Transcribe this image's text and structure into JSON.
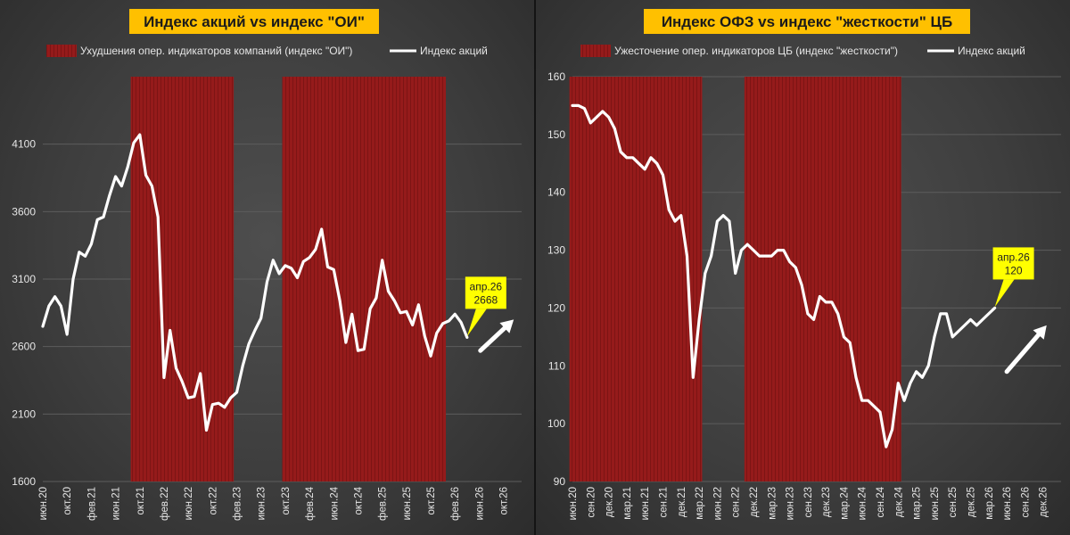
{
  "chart_data": [
    {
      "type": "line",
      "title": "Индекс акций vs индекс \"ОИ\"",
      "legend": {
        "band_label": "Ухудшения опер. индикаторов компаний (индекс \"ОИ\")",
        "line_label": "Индекс акций",
        "position": "top"
      },
      "ylim": [
        1600,
        4600
      ],
      "yticks": [
        1600,
        2100,
        2600,
        3100,
        3600,
        4100
      ],
      "xlim": [
        0,
        79
      ],
      "xticks": [
        {
          "i": 0,
          "label": "июн.20"
        },
        {
          "i": 4,
          "label": "окт.20"
        },
        {
          "i": 8,
          "label": "фев.21"
        },
        {
          "i": 12,
          "label": "июн.21"
        },
        {
          "i": 16,
          "label": "окт.21"
        },
        {
          "i": 20,
          "label": "фев.22"
        },
        {
          "i": 24,
          "label": "июн.22"
        },
        {
          "i": 28,
          "label": "окт.22"
        },
        {
          "i": 32,
          "label": "фев.23"
        },
        {
          "i": 36,
          "label": "июн.23"
        },
        {
          "i": 40,
          "label": "окт.23"
        },
        {
          "i": 44,
          "label": "фев.24"
        },
        {
          "i": 48,
          "label": "июн.24"
        },
        {
          "i": 52,
          "label": "окт.24"
        },
        {
          "i": 56,
          "label": "фев.25"
        },
        {
          "i": 60,
          "label": "июн.25"
        },
        {
          "i": 64,
          "label": "окт.25"
        },
        {
          "i": 68,
          "label": "фев.26"
        },
        {
          "i": 72,
          "label": "июн.26"
        },
        {
          "i": 76,
          "label": "окт.26"
        }
      ],
      "bands": [
        [
          14.5,
          31.5
        ],
        [
          39.5,
          66.5
        ]
      ],
      "series": [
        {
          "name": "Индекс акций",
          "color": "#ffffff",
          "values": [
            2750,
            2900,
            2970,
            2900,
            2690,
            3100,
            3300,
            3270,
            3360,
            3540,
            3560,
            3720,
            3860,
            3790,
            3930,
            4110,
            4170,
            3870,
            3790,
            3560,
            2370,
            2720,
            2440,
            2340,
            2220,
            2230,
            2400,
            1980,
            2170,
            2180,
            2150,
            2220,
            2260,
            2460,
            2620,
            2720,
            2810,
            3080,
            3240,
            3140,
            3200,
            3180,
            3110,
            3230,
            3260,
            3320,
            3470,
            3190,
            3170,
            2940,
            2630,
            2840,
            2570,
            2580,
            2880,
            2960,
            3240,
            3010,
            2940,
            2850,
            2860,
            2760,
            2910,
            2680,
            2530,
            2700,
            2770,
            2790,
            2840,
            2780,
            2668
          ]
        }
      ],
      "annotation": {
        "label": "апр.26",
        "value": "2668",
        "i": 70
      },
      "arrow": {
        "from": [
          72.2,
          2570
        ],
        "to": [
          77.7,
          2800
        ]
      },
      "colors": {
        "band": "#951b1b",
        "title_bg": "#ffc000",
        "title_fg": "#1b1b1b",
        "annotation_bg": "#ffff00"
      }
    },
    {
      "type": "line",
      "title": "Индекс ОФЗ vs индекс \"жесткости\" ЦБ",
      "legend": {
        "band_label": "Ужесточение опер. индикаторов ЦБ (индекс \"жесткости\")",
        "line_label": "Индекс акций",
        "position": "top"
      },
      "ylim": [
        90,
        160
      ],
      "yticks": [
        90,
        100,
        110,
        120,
        130,
        140,
        150,
        160
      ],
      "xlim": [
        0,
        81
      ],
      "xticks": [
        {
          "i": 0,
          "label": "июн.20"
        },
        {
          "i": 3,
          "label": "сен.20"
        },
        {
          "i": 6,
          "label": "дек.20"
        },
        {
          "i": 9,
          "label": "мар.21"
        },
        {
          "i": 12,
          "label": "июн.21"
        },
        {
          "i": 15,
          "label": "сен.21"
        },
        {
          "i": 18,
          "label": "дек.21"
        },
        {
          "i": 21,
          "label": "мар.22"
        },
        {
          "i": 24,
          "label": "июн.22"
        },
        {
          "i": 27,
          "label": "сен.22"
        },
        {
          "i": 30,
          "label": "дек.22"
        },
        {
          "i": 33,
          "label": "мар.23"
        },
        {
          "i": 36,
          "label": "июн.23"
        },
        {
          "i": 39,
          "label": "сен.23"
        },
        {
          "i": 42,
          "label": "дек.23"
        },
        {
          "i": 45,
          "label": "мар.24"
        },
        {
          "i": 48,
          "label": "июн.24"
        },
        {
          "i": 51,
          "label": "сен.24"
        },
        {
          "i": 54,
          "label": "дек.24"
        },
        {
          "i": 57,
          "label": "мар.25"
        },
        {
          "i": 60,
          "label": "июн.25"
        },
        {
          "i": 63,
          "label": "сен.25"
        },
        {
          "i": 66,
          "label": "дек.25"
        },
        {
          "i": 69,
          "label": "мар.26"
        },
        {
          "i": 72,
          "label": "июн.26"
        },
        {
          "i": 75,
          "label": "сен.26"
        },
        {
          "i": 78,
          "label": "дек.26"
        }
      ],
      "bands": [
        [
          -0.5,
          21.5
        ],
        [
          28.5,
          54.5
        ]
      ],
      "series": [
        {
          "name": "Индекс акций",
          "color": "#ffffff",
          "values": [
            155,
            155,
            154.5,
            152,
            153,
            154,
            153,
            151,
            147,
            146,
            146,
            145,
            144,
            146,
            145,
            143,
            137,
            135,
            136,
            129,
            108,
            118,
            126,
            129,
            135,
            136,
            135,
            126,
            130,
            131,
            130,
            129,
            129,
            129,
            130,
            130,
            128,
            127,
            124,
            119,
            118,
            122,
            121,
            121,
            119,
            115,
            114,
            108,
            104,
            104,
            103,
            102,
            96,
            99,
            107,
            104,
            107,
            109,
            108,
            110,
            115,
            119,
            119,
            115,
            116,
            117,
            118,
            117,
            118,
            119,
            120
          ]
        }
      ],
      "annotation": {
        "label": "апр.26",
        "value": "120",
        "i": 70
      },
      "arrow": {
        "from": [
          72,
          109
        ],
        "to": [
          78.6,
          117
        ]
      },
      "colors": {
        "band": "#951b1b",
        "title_bg": "#ffc000",
        "title_fg": "#1b1b1b",
        "annotation_bg": "#ffff00"
      }
    }
  ]
}
